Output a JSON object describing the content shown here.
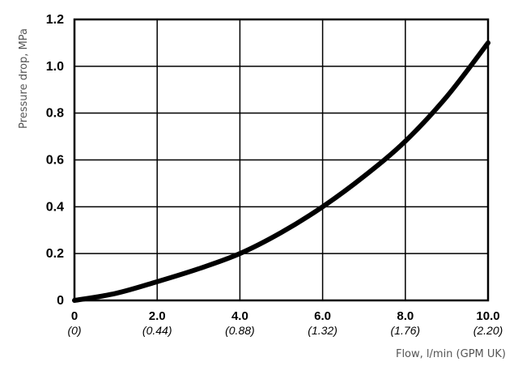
{
  "chart_data": {
    "type": "line",
    "xlabel": "Flow, l/min (GPM UK)",
    "ylabel": "Pressure drop, MPa",
    "xlim": [
      0,
      10
    ],
    "ylim": [
      0,
      1.2
    ],
    "grid": true,
    "x_ticks": [
      {
        "value": 0,
        "label": "0",
        "sublabel": "(0)"
      },
      {
        "value": 2,
        "label": "2.0",
        "sublabel": "(0.44)"
      },
      {
        "value": 4,
        "label": "4.0",
        "sublabel": "(0.88)"
      },
      {
        "value": 6,
        "label": "6.0",
        "sublabel": "(1.32)"
      },
      {
        "value": 8,
        "label": "8.0",
        "sublabel": "(1.76)"
      },
      {
        "value": 10,
        "label": "10.0",
        "sublabel": "(2.20)"
      }
    ],
    "y_ticks": [
      {
        "value": 0,
        "label": "0"
      },
      {
        "value": 0.2,
        "label": "0.2"
      },
      {
        "value": 0.4,
        "label": "0.4"
      },
      {
        "value": 0.6,
        "label": "0.6"
      },
      {
        "value": 0.8,
        "label": "0.8"
      },
      {
        "value": 1.0,
        "label": "1.0"
      },
      {
        "value": 1.2,
        "label": "1.2"
      }
    ],
    "series": [
      {
        "color": "#000000",
        "x": [
          0,
          1,
          2,
          3,
          4,
          5,
          6,
          7,
          8,
          9,
          10
        ],
        "y": [
          0,
          0.03,
          0.08,
          0.135,
          0.2,
          0.29,
          0.4,
          0.53,
          0.68,
          0.87,
          1.1
        ]
      }
    ]
  }
}
